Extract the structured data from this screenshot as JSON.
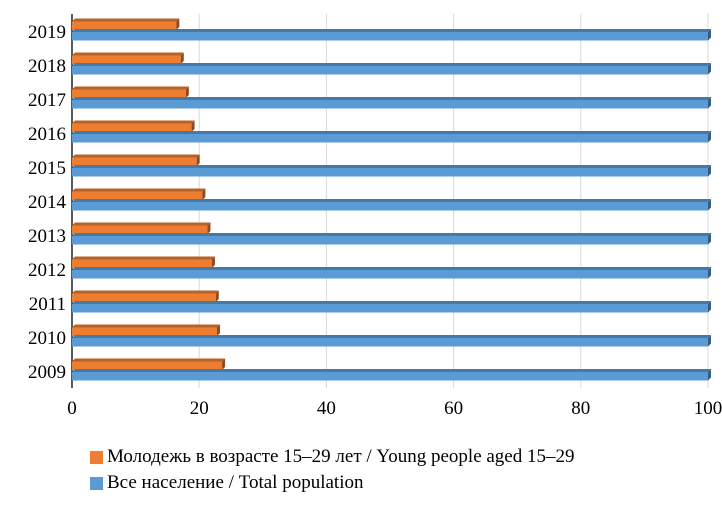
{
  "chart_data": {
    "type": "bar",
    "orientation": "horizontal",
    "style": "3d",
    "categories": [
      "2009",
      "2010",
      "2011",
      "2012",
      "2013",
      "2014",
      "2015",
      "2016",
      "2017",
      "2018",
      "2019"
    ],
    "series": [
      {
        "name": "Молодежь в возрасте 15–29 лет / Young people aged 15–29",
        "color": "#ED7D31",
        "values": [
          23.6,
          22.8,
          22.6,
          22.0,
          21.3,
          20.5,
          19.6,
          18.8,
          17.9,
          17.1,
          16.4
        ]
      },
      {
        "name": "Все население / Total population",
        "color": "#5B9BD5",
        "values": [
          100,
          100,
          100,
          100,
          100,
          100,
          100,
          100,
          100,
          100,
          100
        ]
      }
    ],
    "xlim": [
      0,
      100
    ],
    "x_ticks": [
      "0",
      "20",
      "40",
      "60",
      "80",
      "100"
    ],
    "grid": "vertical",
    "legend_position": "bottom",
    "title": "",
    "xlabel": "",
    "ylabel": ""
  }
}
